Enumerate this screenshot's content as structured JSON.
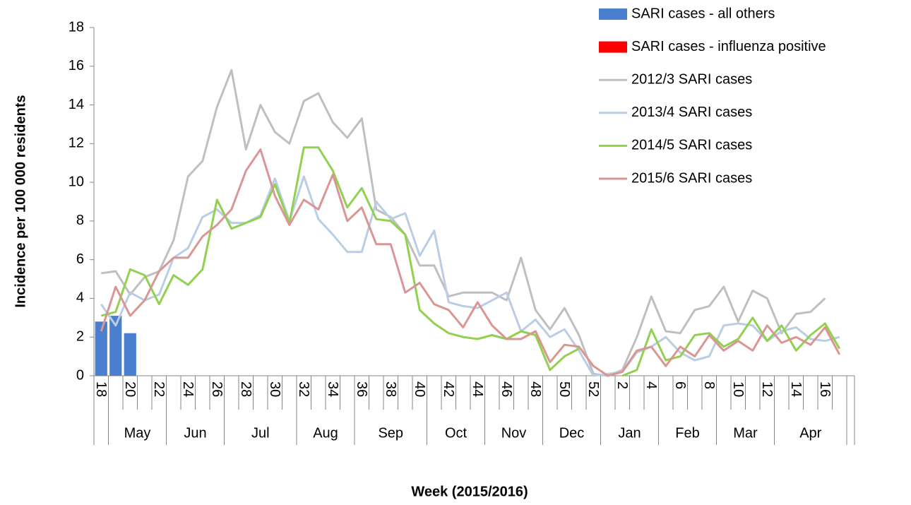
{
  "chart_data": {
    "type": "bar-line",
    "x_label": "Week (2015/2016)",
    "y_label": "Incidence per 100 000 residents",
    "categories": [
      "18",
      null,
      "20",
      null,
      "22",
      null,
      "24",
      null,
      "26",
      null,
      "28",
      null,
      "30",
      null,
      "32",
      null,
      "34",
      null,
      "36",
      null,
      "38",
      null,
      "40",
      null,
      "42",
      null,
      "44",
      null,
      "46",
      null,
      "48",
      null,
      "50",
      null,
      "52",
      null,
      "2",
      null,
      "4",
      null,
      "6",
      null,
      "8",
      null,
      "10",
      null,
      "12",
      null,
      "14",
      null,
      "16",
      null
    ],
    "month_groups": [
      {
        "label": "May",
        "start": 1,
        "end": 4
      },
      {
        "label": "Jun",
        "start": 5,
        "end": 8
      },
      {
        "label": "Jul",
        "start": 9,
        "end": 13
      },
      {
        "label": "Aug",
        "start": 14,
        "end": 17
      },
      {
        "label": "Sep",
        "start": 18,
        "end": 22
      },
      {
        "label": "Oct",
        "start": 23,
        "end": 26
      },
      {
        "label": "Nov",
        "start": 27,
        "end": 30
      },
      {
        "label": "Dec",
        "start": 31,
        "end": 34
      },
      {
        "label": "Jan",
        "start": 35,
        "end": 38
      },
      {
        "label": "Feb",
        "start": 39,
        "end": 42
      },
      {
        "label": "Mar",
        "start": 43,
        "end": 46
      },
      {
        "label": "Apr",
        "start": 47,
        "end": 51
      }
    ],
    "series": [
      {
        "name": "SARI cases - all others",
        "kind": "bar",
        "color": "#4a7fd0",
        "values": [
          2.8,
          3.1,
          2.2,
          null,
          null,
          null,
          null,
          null,
          null,
          null,
          null,
          null,
          null,
          null,
          null,
          null,
          null,
          null,
          null,
          null,
          null,
          null,
          null,
          null,
          null,
          null,
          null,
          null,
          null,
          null,
          null,
          null,
          null,
          null,
          null,
          null,
          null,
          null,
          null,
          null,
          null,
          null,
          null,
          null,
          null,
          null,
          null,
          null,
          null,
          null,
          null,
          null
        ]
      },
      {
        "name": "SARI cases - influenza positive",
        "kind": "bar",
        "color": "#ff0000",
        "values": [
          0,
          0,
          0,
          null,
          null,
          null,
          null,
          null,
          null,
          null,
          null,
          null,
          null,
          null,
          null,
          null,
          null,
          null,
          null,
          null,
          null,
          null,
          null,
          null,
          null,
          null,
          null,
          null,
          null,
          null,
          null,
          null,
          null,
          null,
          null,
          null,
          null,
          null,
          null,
          null,
          null,
          null,
          null,
          null,
          null,
          null,
          null,
          null,
          null,
          null,
          null,
          null
        ]
      },
      {
        "name": "2012/3 SARI cases",
        "kind": "line",
        "color": "#bfbfbf",
        "values": [
          5.3,
          5.4,
          4.2,
          5.1,
          5.4,
          7.0,
          10.3,
          11.1,
          13.9,
          15.8,
          11.7,
          14.0,
          12.6,
          12.0,
          14.2,
          14.6,
          13.1,
          12.3,
          13.3,
          8.6,
          8.2,
          7.3,
          5.7,
          5.7,
          4.1,
          4.3,
          4.3,
          4.3,
          3.9,
          6.1,
          3.4,
          2.4,
          3.5,
          2.1,
          0.1,
          0,
          0.3,
          2.0,
          4.1,
          2.3,
          2.2,
          3.4,
          3.6,
          4.6,
          2.8,
          4.4,
          4.0,
          2.2,
          3.2,
          3.3,
          4.0,
          null
        ]
      },
      {
        "name": "2013/4 SARI cases",
        "kind": "line",
        "color": "#b9cde5",
        "values": [
          3.7,
          2.6,
          4.3,
          3.9,
          4.2,
          6.1,
          6.6,
          8.2,
          8.6,
          7.9,
          7.9,
          8.3,
          10.2,
          8.0,
          10.3,
          8.1,
          7.3,
          6.4,
          6.4,
          9.0,
          8.1,
          8.4,
          6.2,
          7.5,
          3.8,
          3.6,
          3.5,
          3.9,
          4.3,
          2.3,
          2.9,
          2.0,
          2.4,
          1.3,
          0,
          0.1,
          0.2,
          1.2,
          1.5,
          2.0,
          1.2,
          0.8,
          1.0,
          2.6,
          2.7,
          2.6,
          1.8,
          2.3,
          2.5,
          1.9,
          1.8,
          2.0
        ]
      },
      {
        "name": "2014/5 SARI cases",
        "kind": "line",
        "color": "#92d050",
        "values": [
          3.1,
          3.3,
          5.5,
          5.2,
          3.7,
          5.2,
          4.7,
          5.5,
          9.1,
          7.6,
          7.9,
          8.2,
          9.9,
          7.9,
          11.8,
          11.8,
          10.6,
          8.7,
          9.7,
          8.1,
          8.0,
          7.3,
          3.4,
          2.7,
          2.2,
          2.0,
          1.9,
          2.1,
          1.9,
          2.3,
          2.1,
          0.3,
          1.0,
          1.4,
          null,
          null,
          0,
          0.3,
          2.4,
          0.8,
          1.0,
          2.1,
          2.2,
          1.5,
          1.9,
          3.0,
          1.8,
          2.6,
          1.3,
          2.1,
          2.7,
          1.4
        ]
      },
      {
        "name": "2015/6 SARI cases",
        "kind": "line",
        "color": "#d99694",
        "values": [
          2.3,
          4.6,
          3.1,
          3.9,
          5.4,
          6.1,
          6.1,
          7.2,
          7.8,
          8.6,
          10.6,
          11.7,
          9.3,
          7.8,
          9.1,
          8.6,
          10.4,
          8.0,
          8.7,
          6.8,
          6.8,
          4.3,
          4.8,
          3.7,
          3.4,
          2.5,
          3.8,
          2.6,
          1.9,
          1.9,
          2.3,
          0.7,
          1.6,
          1.5,
          0.5,
          0,
          0.2,
          1.3,
          1.5,
          0.5,
          1.5,
          1.0,
          2.1,
          1.3,
          1.8,
          1.3,
          2.6,
          1.7,
          2.0,
          1.6,
          2.5,
          1.1
        ]
      }
    ],
    "ylim": [
      0,
      18
    ],
    "yticks": [
      0,
      2,
      4,
      6,
      8,
      10,
      12,
      14,
      16,
      18
    ],
    "grid": false,
    "legend": "top-right"
  }
}
